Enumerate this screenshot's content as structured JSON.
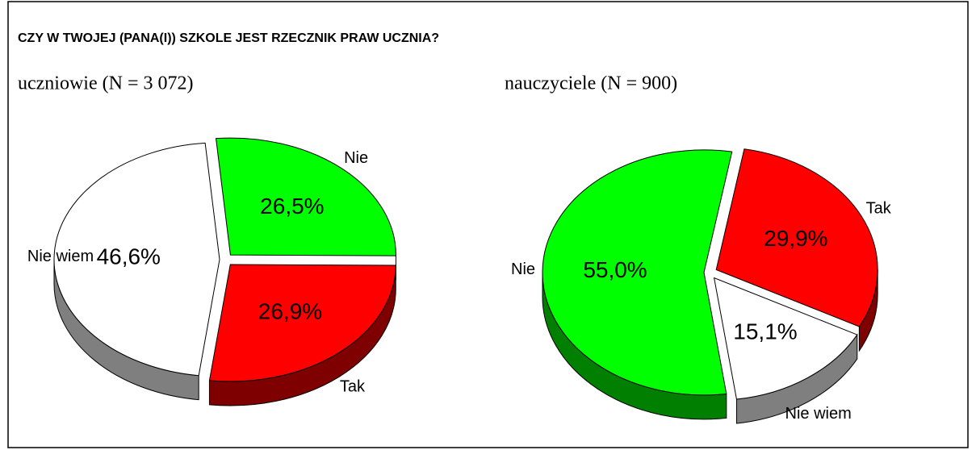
{
  "title": "CZY W TWOJEJ (PANA(I)) SZKOLE JEST RZECZNIK PRAW UCZNIA?",
  "chart_data": [
    {
      "type": "pie",
      "title": "uczniowie (N = 3 072)",
      "categories": [
        "Nie",
        "Tak",
        "Nie wiem"
      ],
      "values": [
        26.5,
        26.9,
        46.6
      ],
      "value_labels": [
        "26,5%",
        "26,9%",
        "46,6%"
      ],
      "colors": [
        "#00ff00",
        "#ff0000",
        "#ffffff"
      ]
    },
    {
      "type": "pie",
      "title": "nauczyciele (N = 900)",
      "categories": [
        "Tak",
        "Nie wiem",
        "Nie"
      ],
      "values": [
        29.9,
        15.1,
        55.0
      ],
      "value_labels": [
        "29,9%",
        "15,1%",
        "55,0%"
      ],
      "colors": [
        "#ff0000",
        "#ffffff",
        "#00ff00"
      ]
    }
  ]
}
